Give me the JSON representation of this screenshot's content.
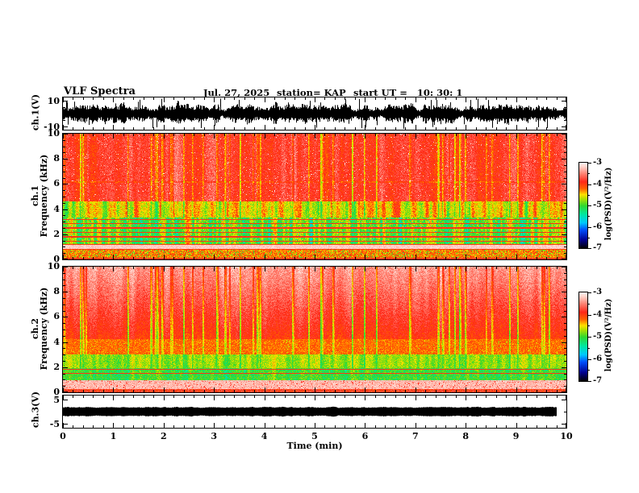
{
  "title": {
    "main": "VLF Spectra",
    "date": "Jul. 27, 2025",
    "station": "station= KAP",
    "start_ut": "start UT =   10: 30: 1"
  },
  "x_axis": {
    "label": "Time (min)",
    "tick_labels": [
      "0",
      "1",
      "2",
      "3",
      "4",
      "5",
      "6",
      "7",
      "8",
      "9",
      "10"
    ]
  },
  "panels": {
    "wave1": {
      "ylabel": "ch.1(V)",
      "tick_labels": [
        "10",
        "-10"
      ]
    },
    "spec1": {
      "ylabel_line1": "ch.1",
      "ylabel_line2": "Frequency (kHz)",
      "tick_labels": [
        "10",
        "8",
        "6",
        "4",
        "2",
        "0"
      ]
    },
    "spec2": {
      "ylabel_line1": "ch.2",
      "ylabel_line2": "Frequency (kHz)",
      "tick_labels": [
        "10",
        "8",
        "6",
        "4",
        "2",
        "0"
      ]
    },
    "wave3": {
      "ylabel": "ch.3(V)",
      "tick_labels": [
        "5",
        "-5"
      ]
    }
  },
  "colorbars": [
    {
      "label": "log(PSD)(V²/Hz)",
      "tick_labels": [
        "-3",
        "-4",
        "-5",
        "-6",
        "-7"
      ]
    },
    {
      "label": "log(PSD)(V²/Hz)",
      "tick_labels": [
        "-3",
        "-4",
        "-5",
        "-6",
        "-7"
      ]
    }
  ],
  "colors": {
    "background": "#ffffff",
    "axis": "#000000",
    "colormap_stops": [
      [
        0.0,
        "#000000"
      ],
      [
        0.1,
        "#000090"
      ],
      [
        0.22,
        "#0050ff"
      ],
      [
        0.3,
        "#00c8ff"
      ],
      [
        0.4,
        "#00e8a0"
      ],
      [
        0.5,
        "#30d830"
      ],
      [
        0.58,
        "#b0e000"
      ],
      [
        0.63,
        "#ffe000"
      ],
      [
        0.7,
        "#ff6000"
      ],
      [
        0.78,
        "#ff2818"
      ],
      [
        0.88,
        "#ff8878"
      ],
      [
        0.96,
        "#ffd8d0"
      ],
      [
        1.0,
        "#fff0ee"
      ]
    ]
  },
  "chart_data": [
    {
      "type": "line",
      "panel": "ch1_waveform",
      "ylabel": "ch.1(V)",
      "yticks": [
        10,
        -10
      ],
      "ylim": [
        -12.7,
        12.7
      ],
      "xlim": [
        0,
        10
      ],
      "description": "Dense black broadband noise waveform filling roughly ±8 V with frequent spikes reaching ±10 V across the full 10 minutes."
    },
    {
      "type": "heatmap",
      "panel": "ch1_spectrogram",
      "ylabel": "ch.1 Frequency (kHz)",
      "ylim": [
        0,
        10
      ],
      "xlim": [
        0,
        10
      ],
      "colorbar": {
        "label": "log(PSD)(V²/Hz)",
        "range": [
          -7,
          -3
        ]
      },
      "bands": [
        {
          "freq_kHz": [
            4.6,
            10
          ],
          "level_logPSD": -4.0,
          "appearance": "red background with yellow/orange vertical sferic streaks and pink-white bursts"
        },
        {
          "freq_kHz": [
            3.3,
            4.6
          ],
          "level_logPSD": -4.7,
          "appearance": "alternating yellow-green vertical bursts over red"
        },
        {
          "freq_kHz": [
            1.2,
            3.3
          ],
          "level_logPSD": -5.0,
          "appearance": "green/cyan band crossed by red horizontal harmonic lines near 1.45,1.8,2.15,2.5,2.85,3.2 kHz"
        },
        {
          "freq_kHz": [
            0.86,
            1.14
          ],
          "level_logPSD": -3.2,
          "appearance": "bright white band bounded by red lines"
        },
        {
          "freq_kHz": [
            0,
            0.85
          ],
          "level_logPSD": -4.3,
          "appearance": "orange-red speckle with green flecks"
        }
      ]
    },
    {
      "type": "heatmap",
      "panel": "ch2_spectrogram",
      "ylabel": "ch.2 Frequency (kHz)",
      "ylim": [
        0,
        10
      ],
      "xlim": [
        0,
        10
      ],
      "colorbar": {
        "label": "log(PSD)(V²/Hz)",
        "range": [
          -7,
          -3
        ]
      },
      "bands": [
        {
          "freq_kHz": [
            4.2,
            10
          ],
          "level_logPSD": -3.5,
          "appearance": "pale pink/white with dense red vertical striations, reddening toward lower frequency"
        },
        {
          "freq_kHz": [
            3.0,
            4.2
          ],
          "level_logPSD": -4.3,
          "appearance": "orange-red"
        },
        {
          "freq_kHz": [
            1.9,
            3.0
          ],
          "level_logPSD": -4.6,
          "appearance": "yellow-orange with green vertical spikes"
        },
        {
          "freq_kHz": [
            0.95,
            1.9
          ],
          "level_logPSD": -4.9,
          "appearance": "yellow-green with red harmonic lines near 1.5 and 1.8 kHz"
        },
        {
          "freq_kHz": [
            0,
            0.95
          ],
          "level_logPSD": -3.4,
          "appearance": "pale pink speckled band with thin red lines"
        }
      ]
    },
    {
      "type": "line",
      "panel": "ch3_waveform",
      "ylabel": "ch.3(V)",
      "yticks": [
        5,
        -5
      ],
      "ylim": [
        -6.7,
        6.7
      ],
      "xlim": [
        0,
        10
      ],
      "description": "Solid clipped black band of constant amplitude about ±1.8 V extending from 0 to about 9.8 min."
    }
  ]
}
